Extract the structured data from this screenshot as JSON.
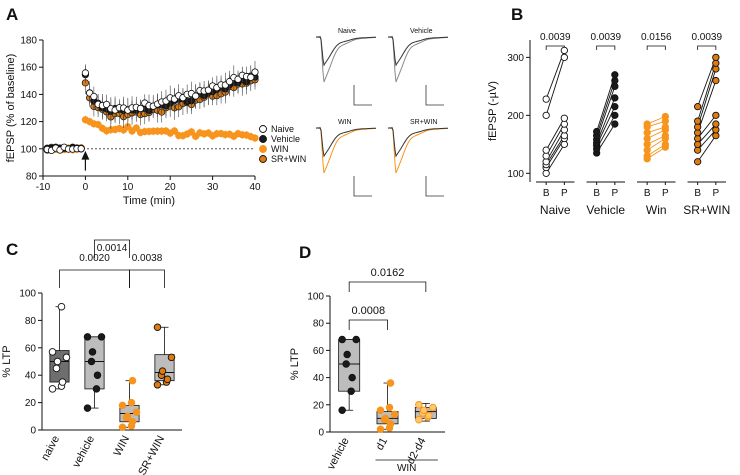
{
  "chart_data": [
    {
      "panel": "A",
      "type": "scatter",
      "xlabel": "Time (min)",
      "ylabel": "fEPSP (% of baseline)",
      "xlim": [
        -10,
        40
      ],
      "ylim": [
        80,
        180
      ],
      "xticks": [
        -10,
        0,
        10,
        20,
        30,
        40
      ],
      "yticks": [
        80,
        100,
        120,
        140,
        160,
        180
      ],
      "reference_line": 100,
      "legend": [
        "Naive",
        "Vehicle",
        "WIN",
        "SR+WIN"
      ],
      "legend_position": "right",
      "colors": {
        "Naive": "#ffffff",
        "Vehicle": "#1a1a1a",
        "WIN": "#f7941d",
        "SR+WIN": "#e07b10"
      },
      "series_shape": {
        "WIN": [
          [
            0,
            122
          ],
          [
            2,
            117
          ],
          [
            5,
            114
          ],
          [
            10,
            115
          ],
          [
            15,
            113
          ],
          [
            20,
            112
          ],
          [
            25,
            111
          ],
          [
            30,
            110
          ],
          [
            35,
            110
          ],
          [
            40,
            108
          ]
        ],
        "Others": [
          [
            0,
            153
          ],
          [
            1,
            140
          ],
          [
            3,
            132
          ],
          [
            6,
            128
          ],
          [
            10,
            127
          ],
          [
            15,
            130
          ],
          [
            20,
            133
          ],
          [
            25,
            137
          ],
          [
            30,
            143
          ],
          [
            35,
            148
          ],
          [
            40,
            153
          ]
        ]
      },
      "traces": [
        {
          "label": "Naive"
        },
        {
          "label": "Vehicle"
        },
        {
          "label": "WIN"
        },
        {
          "label": "SR+WIN"
        }
      ]
    },
    {
      "panel": "B",
      "type": "scatter",
      "ylabel": "fEPSP (-µV)",
      "ylim": [
        100,
        320
      ],
      "yticks": [
        100,
        200,
        300
      ],
      "tick_labels": [
        "B",
        "P"
      ],
      "groups": [
        {
          "name": "Naive",
          "pvalue": "0.0039",
          "B": [
            100,
            110,
            115,
            120,
            130,
            140,
            200,
            228
          ],
          "P": [
            150,
            160,
            165,
            175,
            185,
            195,
            300,
            312
          ],
          "color": "#ffffff"
        },
        {
          "name": "Vehicle",
          "pvalue": "0.0039",
          "B": [
            135,
            142,
            148,
            152,
            158,
            165,
            172
          ],
          "P": [
            185,
            200,
            215,
            230,
            250,
            260,
            270
          ],
          "color": "#1a1a1a"
        },
        {
          "name": "Win",
          "pvalue": "0.0156",
          "B": [
            125,
            130,
            140,
            150,
            160,
            170,
            180,
            185
          ],
          "P": [
            145,
            150,
            160,
            165,
            175,
            180,
            190,
            198
          ],
          "color": "#f7941d"
        },
        {
          "name": "SR+WIN",
          "pvalue": "0.0039",
          "B": [
            120,
            140,
            150,
            160,
            170,
            180,
            190,
            215
          ],
          "P": [
            165,
            175,
            185,
            200,
            260,
            280,
            290,
            300
          ],
          "color": "#e07b10"
        }
      ]
    },
    {
      "panel": "C",
      "type": "box",
      "ylabel": "% LTP",
      "ylim": [
        0,
        100
      ],
      "yticks": [
        0,
        20,
        40,
        60,
        80,
        100
      ],
      "categories": [
        "naive",
        "vehicle",
        "WIN",
        "SR+WIN"
      ],
      "boxes": [
        {
          "min": 30,
          "q1": 35,
          "median": 50,
          "q3": 58,
          "max": 90,
          "color": "#6e6e6e",
          "points": [
            30,
            32,
            35,
            45,
            50,
            53,
            57,
            90
          ],
          "point_color": "#ffffff"
        },
        {
          "min": 16,
          "q1": 30,
          "median": 50,
          "q3": 68,
          "max": 68,
          "color": "#bdbdbd",
          "points": [
            16,
            30,
            40,
            50,
            57,
            68,
            68
          ],
          "point_color": "#1a1a1a"
        },
        {
          "min": 2,
          "q1": 6,
          "median": 12,
          "q3": 18,
          "max": 36,
          "color": "#bdbdbd",
          "points": [
            2,
            3,
            6,
            9,
            10,
            13,
            18,
            20,
            36
          ],
          "point_color": "#f7941d"
        },
        {
          "min": 33,
          "q1": 36,
          "median": 42,
          "q3": 55,
          "max": 75,
          "color": "#bdbdbd",
          "points": [
            33,
            35,
            37,
            40,
            43,
            53,
            75
          ],
          "point_color": "#e07b10"
        }
      ],
      "comparisons": [
        {
          "from": 0,
          "to": 2,
          "pvalue": "0.0020"
        },
        {
          "from": 1,
          "to": 2,
          "pvalue": "0.0014"
        },
        {
          "from": 2,
          "to": 3,
          "pvalue": "0.0038"
        }
      ]
    },
    {
      "panel": "D",
      "type": "box",
      "ylabel": "% LTP",
      "ylim": [
        0,
        100
      ],
      "yticks": [
        0,
        20,
        40,
        60,
        80,
        100
      ],
      "categories": [
        "vehicle",
        "d1",
        "d2-d4"
      ],
      "group_label": "WIN",
      "boxes": [
        {
          "min": 16,
          "q1": 30,
          "median": 50,
          "q3": 68,
          "max": 68,
          "color": "#bdbdbd",
          "points": [
            16,
            30,
            40,
            50,
            57,
            68,
            68
          ],
          "point_color": "#1a1a1a"
        },
        {
          "min": 2,
          "q1": 6,
          "median": 10,
          "q3": 15,
          "max": 36,
          "color": "#bdbdbd",
          "points": [
            2,
            3,
            6,
            9,
            10,
            13,
            16,
            18,
            36
          ],
          "point_color": "#f7941d"
        },
        {
          "min": 8,
          "q1": 10,
          "median": 15,
          "q3": 18,
          "max": 21,
          "color": "#bdbdbd",
          "points": [
            9,
            11,
            12,
            14,
            16,
            18,
            20
          ],
          "point_color": "#ffc76b"
        }
      ],
      "comparisons": [
        {
          "from": 0,
          "to": 1,
          "pvalue": "0.0008"
        },
        {
          "from": 0,
          "to": 2,
          "pvalue": "0.0162"
        }
      ]
    }
  ],
  "panel_labels": [
    "A",
    "B",
    "C",
    "D"
  ]
}
